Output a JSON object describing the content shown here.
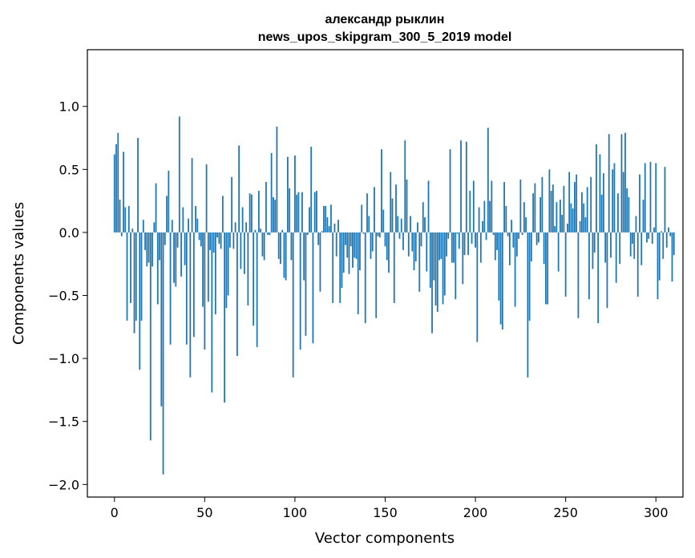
{
  "chart_data": {
    "type": "bar",
    "title": "александр рыклин",
    "subtitle": "news_upos_skipgram_300_5_2019 model",
    "xlabel": "Vector components",
    "ylabel": "Components values",
    "xlim": [
      -15,
      315
    ],
    "ylim": [
      -2.1,
      1.45
    ],
    "x_ticks": [
      0,
      50,
      100,
      150,
      200,
      250,
      300
    ],
    "y_ticks": [
      -2.0,
      -1.5,
      -1.0,
      -0.5,
      0.0,
      0.5,
      1.0
    ],
    "y_tick_labels": [
      "−2.0",
      "−1.5",
      "−1.0",
      "−0.5",
      "0.0",
      "0.5",
      "1.0"
    ],
    "bar_color": "#1f77b4",
    "series": [
      {
        "name": "components",
        "values": [
          0.62,
          0.7,
          0.79,
          0.26,
          -0.03,
          0.64,
          0.2,
          -0.7,
          0.21,
          -0.56,
          0.03,
          -0.8,
          -0.7,
          0.75,
          -1.09,
          -0.7,
          0.1,
          -0.14,
          -0.27,
          -0.24,
          -1.65,
          -0.27,
          0.08,
          0.39,
          -0.57,
          -0.22,
          -1.38,
          -1.92,
          -0.1,
          0.29,
          0.49,
          -0.89,
          0.1,
          -0.4,
          -0.43,
          -0.12,
          0.92,
          -0.35,
          0.2,
          -0.26,
          -0.89,
          0.11,
          -1.15,
          0.59,
          -0.83,
          0.21,
          0.11,
          -0.06,
          -0.11,
          -0.59,
          -0.93,
          0.54,
          -0.55,
          -0.14,
          -1.27,
          -0.16,
          -0.65,
          -0.04,
          -0.09,
          -0.13,
          0.29,
          -1.35,
          -0.6,
          -0.5,
          -0.12,
          0.44,
          -0.13,
          0.08,
          -0.98,
          0.69,
          -0.29,
          0.2,
          -0.33,
          0.08,
          -0.58,
          0.31,
          0.3,
          -0.74,
          0.02,
          -0.91,
          0.33,
          0.03,
          -0.19,
          -0.22,
          0.4,
          -0.02,
          -0.02,
          0.63,
          0.28,
          0.26,
          0.84,
          -0.21,
          -0.25,
          0.02,
          -0.36,
          -0.38,
          0.6,
          0.35,
          -0.22,
          -1.15,
          0.61,
          0.3,
          0.32,
          -0.93,
          0.32,
          -0.38,
          -0.82,
          -0.02,
          0.2,
          0.68,
          -0.88,
          0.32,
          0.33,
          -0.1,
          -0.47,
          0.01,
          0.21,
          0.21,
          0.12,
          0.05,
          0.22,
          -0.56,
          0.07,
          -0.19,
          0.1,
          -0.56,
          -0.44,
          -0.32,
          -0.1,
          -0.2,
          -0.33,
          -0.11,
          -0.28,
          -0.2,
          -0.21,
          -0.65,
          -0.3,
          0.22,
          -0.01,
          -0.72,
          0.31,
          0.13,
          -0.21,
          -0.15,
          0.36,
          -0.68,
          -0.03,
          -0.04,
          0.66,
          0.18,
          -0.11,
          -0.22,
          -0.32,
          0.48,
          0.27,
          -0.56,
          0.38,
          0.13,
          -0.05,
          0.11,
          -0.14,
          0.73,
          0.42,
          -0.19,
          0.13,
          -0.15,
          -0.3,
          -0.23,
          0.08,
          -0.47,
          -0.11,
          0.24,
          0.12,
          -0.31,
          0.41,
          -0.44,
          -0.8,
          -0.38,
          -0.58,
          -0.63,
          -0.22,
          -0.21,
          -0.57,
          -0.5,
          -0.19,
          -0.05,
          0.66,
          -0.24,
          -0.24,
          -0.53,
          -0.01,
          -0.13,
          0.73,
          -0.41,
          -0.18,
          0.72,
          -0.18,
          0.33,
          -0.09,
          0.41,
          -0.12,
          -0.87,
          0.2,
          -0.24,
          0.09,
          0.25,
          -0.06,
          0.83,
          0.25,
          0.41,
          -0.02,
          -0.22,
          -0.14,
          -0.54,
          -0.73,
          -0.77,
          0.4,
          0.21,
          -0.03,
          -0.26,
          0.1,
          -0.12,
          -0.59,
          -0.19,
          -0.05,
          0.42,
          -0.02,
          0.24,
          0.12,
          -1.15,
          -0.7,
          -0.23,
          0.31,
          0.39,
          -0.1,
          -0.08,
          0.28,
          0.44,
          -0.25,
          -0.57,
          -0.57,
          0.5,
          0.33,
          0.38,
          0.05,
          0.24,
          -0.31,
          0.26,
          0.14,
          0.37,
          -0.51,
          0.07,
          0.48,
          0.23,
          0.19,
          0.4,
          0.46,
          -0.68,
          0.09,
          0.32,
          0.23,
          0.12,
          0.36,
          -0.53,
          0.44,
          -0.29,
          -0.16,
          0.7,
          -0.72,
          0.62,
          0.3,
          0.47,
          -0.24,
          -0.6,
          0.78,
          -0.2,
          0.5,
          0.55,
          -0.4,
          0.31,
          -0.25,
          0.78,
          0.48,
          0.79,
          0.35,
          0.28,
          -0.19,
          -0.09,
          -0.21,
          0.13,
          -0.51,
          0.46,
          -0.26,
          0.26,
          0.55,
          -0.08,
          -0.05,
          0.56,
          -0.09,
          0.04,
          0.55,
          -0.53,
          -0.38,
          0.01,
          -0.21,
          0.52,
          -0.12,
          0.04,
          -0.03,
          -0.39,
          -0.18
        ]
      }
    ]
  }
}
